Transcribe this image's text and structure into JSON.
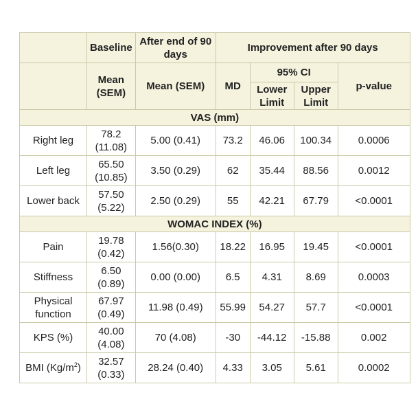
{
  "headers": {
    "baseline": "Baseline",
    "after_end": "After end of 90 days",
    "improvement": "Improvement after 90 days",
    "mean_sem": "Mean (SEM)",
    "mean_sem_after": "Mean (SEM)",
    "md": "MD",
    "ci": "95% CI",
    "lower": "Lower Limit",
    "upper": "Upper Limit",
    "pvalue": "p-value"
  },
  "sections": [
    {
      "title": "VAS (mm)",
      "rows": [
        {
          "label": "Right leg",
          "baseline": "78.2 (11.08)",
          "after": "5.00 (0.41)",
          "md": "73.2",
          "lower": "46.06",
          "upper": "100.34",
          "p": "0.0006"
        },
        {
          "label": "Left leg",
          "baseline": "65.50 (10.85)",
          "after": "3.50 (0.29)",
          "md": "62",
          "lower": "35.44",
          "upper": "88.56",
          "p": "0.0012"
        },
        {
          "label": "Lower back",
          "baseline": "57.50 (5.22)",
          "after": "2.50 (0.29)",
          "md": "55",
          "lower": "42.21",
          "upper": "67.79",
          "p": "<0.0001"
        }
      ]
    },
    {
      "title": "WOMAC INDEX (%)",
      "rows": [
        {
          "label": "Pain",
          "baseline": "19.78 (0.42)",
          "after": "1.56(0.30)",
          "md": "18.22",
          "lower": "16.95",
          "upper": "19.45",
          "p": "<0.0001"
        },
        {
          "label": "Stiffness",
          "baseline": "6.50 (0.89)",
          "after": "0.00 (0.00)",
          "md": "6.5",
          "lower": "4.31",
          "upper": "8.69",
          "p": "0.0003"
        },
        {
          "label": "Physical function",
          "baseline": "67.97 (0.49)",
          "after": "11.98 (0.49)",
          "md": "55.99",
          "lower": "54.27",
          "upper": "57.7",
          "p": "<0.0001"
        },
        {
          "label": "KPS (%)",
          "baseline": "40.00 (4.08)",
          "after": "70 (4.08)",
          "md": "-30",
          "lower": "-44.12",
          "upper": "-15.88",
          "p": "0.002"
        }
      ]
    }
  ],
  "bmi_row": {
    "label_prefix": "BMI (Kg/m",
    "label_sup": "2",
    "label_suffix": ")",
    "baseline": "32.57 (0.33)",
    "after": "28.24 (0.40)",
    "md": "4.33",
    "lower": "3.05",
    "upper": "5.61",
    "p": "0.0002"
  }
}
